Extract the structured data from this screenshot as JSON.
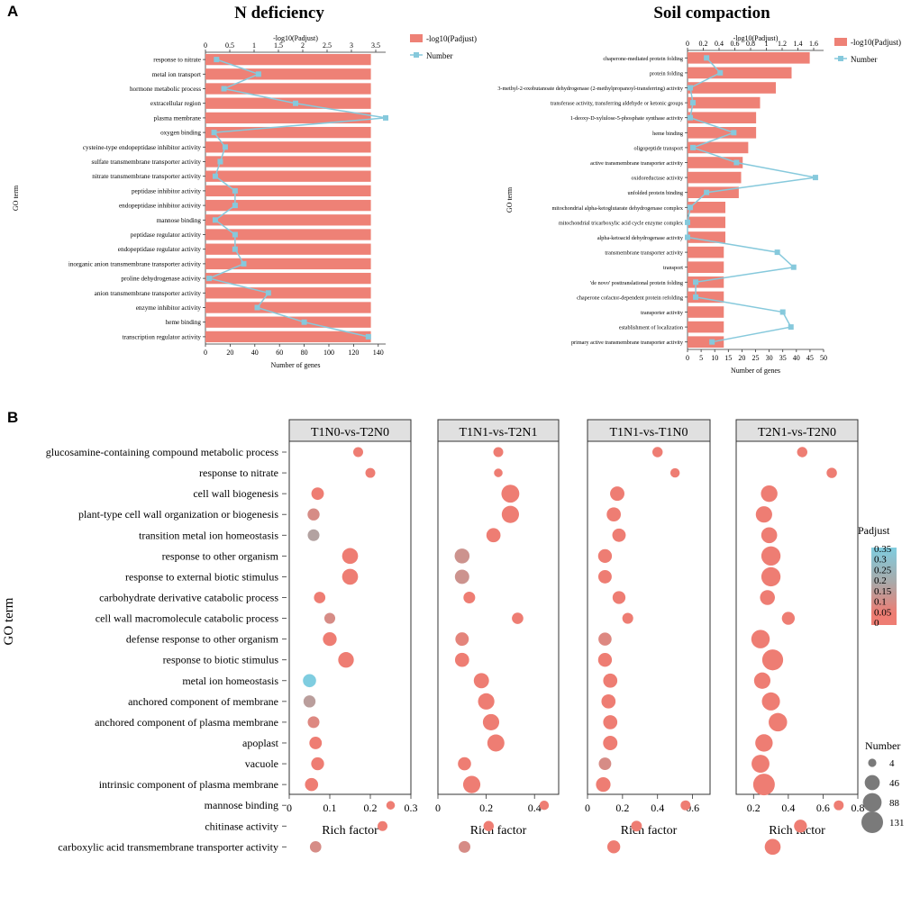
{
  "panel_labels": {
    "a": "A",
    "b": "B"
  },
  "colors": {
    "bar": "#ee8176",
    "line": "#86c9dc",
    "grid": "#d9d9d9",
    "strip_bg": "#e0e0e0",
    "low_padj": "#ee7d73",
    "mid_padj": "#a9a9a9",
    "high_padj": "#7fcde0"
  },
  "chart_data": [
    {
      "id": "n_deficiency",
      "type": "bar",
      "title": "N deficiency",
      "ylabel": "GO term",
      "xlabel": "Number of genes",
      "top_axis_label": "-log10(Padjust)",
      "legend": {
        "bar": "-log10(Padjust)",
        "line": "Number"
      },
      "x_ticks": [
        0,
        20,
        40,
        60,
        80,
        100,
        120,
        140
      ],
      "x_range": [
        0,
        146
      ],
      "top_ticks": [
        "0",
        "0.5",
        "1",
        "1.5",
        "2",
        "2.5",
        "3",
        "3.5"
      ],
      "top_range": [
        0,
        3.5
      ],
      "categories": [
        "response to nitrate",
        "metal ion transport",
        "hormone metabolic process",
        "extracellular region",
        "plasma membrane",
        "oxygen binding",
        "cysteine-type endopeptidase inhibitor activity",
        "sulfate transmembrane transporter activity",
        "nitrate transmembrane transporter activity",
        "peptidase inhibitor activity",
        "endopeptidase inhibitor activity",
        "mannose binding",
        "peptidase regulator activity",
        "endopeptidase regulator activity",
        "inorganic anion transmembrane transporter activity",
        "proline dehydrogenase activity",
        "anion transmembrane transporter activity",
        "enzyme inhibitor activity",
        "heme binding",
        "transcription regulator activity"
      ],
      "series": [
        {
          "name": "-log10(Padjust)",
          "values": [
            3.4,
            3.4,
            3.4,
            3.4,
            3.4,
            3.4,
            3.4,
            3.4,
            3.4,
            3.4,
            3.4,
            3.4,
            3.4,
            3.4,
            3.4,
            3.4,
            3.4,
            3.4,
            3.4,
            3.4
          ]
        },
        {
          "name": "Number",
          "values": [
            9,
            43,
            15,
            73,
            146,
            7,
            16,
            12,
            8,
            24,
            24,
            8,
            24,
            24,
            31,
            3,
            51,
            42,
            80,
            132
          ]
        }
      ]
    },
    {
      "id": "soil_compaction",
      "type": "bar",
      "title": "Soil compaction",
      "ylabel": "GO term",
      "xlabel": "Number of genes",
      "top_axis_label": "-log10(Padjust)",
      "legend": {
        "bar": "-log10(Padjust)",
        "line": "Number"
      },
      "x_ticks": [
        0,
        5,
        10,
        15,
        20,
        25,
        30,
        35,
        40,
        45,
        50
      ],
      "x_range": [
        0,
        50
      ],
      "top_ticks": [
        "0",
        "0.2",
        "0.4",
        "0.6",
        "0.8",
        "1",
        "1.2",
        "1.4",
        "1.6"
      ],
      "top_range": [
        0,
        1.6
      ],
      "categories": [
        "chaperone-mediated protein folding",
        "protein folding",
        "3-methyl-2-oxobutanoate dehydrogenase (2-methylpropanoyl-transferring) activity",
        "transferase activity, transferring aldehyde or ketonic groups",
        "1-deoxy-D-xylulose-5-phosphate synthase activity",
        "heme binding",
        "oligopeptide transport",
        "active transmembrane transporter activity",
        "oxidoreductase activity",
        "unfolded protein binding",
        "mitochondrial alpha-ketoglutarate dehydrogenase complex",
        "mitochondrial tricarboxylic acid cycle enzyme complex",
        "alpha-ketoacid dehydrogenase activity",
        "transmembrane transporter activity",
        "transport",
        "'de novo' posttranslational protein folding",
        "chaperone cofactor-dependent protein refolding",
        "transporter activity",
        "establishment of localization",
        "primary active transmembrane transporter activity"
      ],
      "series": [
        {
          "name": "-log10(Padjust)",
          "values": [
            1.55,
            1.32,
            1.12,
            0.92,
            0.87,
            0.87,
            0.77,
            0.7,
            0.68,
            0.65,
            0.48,
            0.48,
            0.48,
            0.46,
            0.46,
            0.46,
            0.46,
            0.46,
            0.46,
            0.46
          ]
        },
        {
          "name": "Number",
          "values": [
            7,
            12,
            1,
            2,
            1,
            17,
            2,
            18,
            47,
            7,
            1,
            0,
            0,
            33,
            39,
            3,
            3,
            35,
            38,
            9
          ]
        }
      ]
    },
    {
      "id": "facet_bubble",
      "type": "scatter",
      "xlabel": "Rich factor",
      "ylabel": "GO term",
      "categories": [
        "glucosamine-containing compound metabolic process",
        "response to nitrate",
        "cell wall biogenesis",
        "plant-type cell wall organization or biogenesis",
        "transition metal ion homeostasis",
        "response to other organism",
        "response to external biotic stimulus",
        "carbohydrate derivative catabolic process",
        "cell wall macromolecule catabolic process",
        "defense response to other organism",
        "response to biotic stimulus",
        "metal ion homeostasis",
        "anchored component of membrane",
        "anchored component of plasma membrane",
        "apoplast",
        "vacuole",
        "intrinsic component of plasma membrane",
        "mannose binding",
        "chitinase activity",
        "carboxylic acid transmembrane transporter activity"
      ],
      "legend_color": {
        "title": "Padjust",
        "ticks": [
          "0.35",
          "0.3",
          "0.25",
          "0.2",
          "0.15",
          "0.1",
          "0.05",
          "0"
        ]
      },
      "legend_size": {
        "title": "Number",
        "values": [
          4,
          46,
          88,
          131
        ]
      },
      "panels": [
        {
          "name": "T1N0-vs-T2N0",
          "x_ticks": [
            "0",
            "0.1",
            "0.2",
            "0.3"
          ],
          "x_range": [
            0,
            0.3
          ],
          "rich": [
            0.17,
            0.2,
            0.07,
            0.06,
            0.06,
            0.15,
            0.15,
            0.075,
            0.1,
            0.1,
            0.14,
            0.05,
            0.05,
            0.06,
            0.065,
            0.07,
            0.055,
            0.25,
            0.23,
            0.065
          ],
          "count": [
            10,
            10,
            25,
            22,
            20,
            55,
            55,
            18,
            15,
            35,
            52,
            30,
            22,
            20,
            25,
            28,
            30,
            5,
            10,
            18
          ],
          "padj": [
            0.02,
            0.02,
            0.02,
            0.12,
            0.22,
            0.02,
            0.02,
            0.02,
            0.12,
            0.02,
            0.02,
            0.34,
            0.2,
            0.1,
            0.02,
            0.02,
            0.02,
            0.02,
            0.02,
            0.12
          ]
        },
        {
          "name": "T1N1-vs-T2N1",
          "x_ticks": [
            "0",
            "0.2",
            "0.4"
          ],
          "x_range": [
            0,
            0.5
          ],
          "rich": [
            0.25,
            0.25,
            0.3,
            0.3,
            0.23,
            0.1,
            0.1,
            0.13,
            0.33,
            0.1,
            0.1,
            0.18,
            0.2,
            0.22,
            0.24,
            0.11,
            0.14,
            0.44,
            0.21,
            0.11
          ],
          "count": [
            10,
            5,
            78,
            70,
            38,
            45,
            40,
            20,
            18,
            32,
            38,
            48,
            60,
            60,
            68,
            30,
            70,
            8,
            12,
            20
          ],
          "padj": [
            0.02,
            0.02,
            0.02,
            0.02,
            0.02,
            0.15,
            0.15,
            0.02,
            0.02,
            0.08,
            0.04,
            0.02,
            0.02,
            0.02,
            0.02,
            0.05,
            0.02,
            0.02,
            0.02,
            0.12
          ]
        },
        {
          "name": "T1N1-vs-T1N0",
          "x_ticks": [
            "0",
            "0.2",
            "0.4",
            "0.6"
          ],
          "x_range": [
            0,
            0.7
          ],
          "rich": [
            0.4,
            0.5,
            0.17,
            0.15,
            0.18,
            0.1,
            0.1,
            0.18,
            0.23,
            0.1,
            0.1,
            0.13,
            0.12,
            0.13,
            0.13,
            0.1,
            0.09,
            0.56,
            0.28,
            0.15
          ],
          "count": [
            12,
            8,
            40,
            38,
            32,
            35,
            32,
            28,
            15,
            30,
            35,
            38,
            38,
            38,
            40,
            25,
            42,
            10,
            14,
            28
          ],
          "padj": [
            0.02,
            0.02,
            0.02,
            0.02,
            0.02,
            0.02,
            0.02,
            0.02,
            0.02,
            0.1,
            0.02,
            0.02,
            0.02,
            0.02,
            0.02,
            0.12,
            0.02,
            0.02,
            0.02,
            0.02
          ]
        },
        {
          "name": "T2N1-vs-T2N0",
          "x_ticks": [
            "0.2",
            "0.4",
            "0.6",
            "0.8"
          ],
          "x_range": [
            0.1,
            0.8
          ],
          "rich": [
            0.48,
            0.65,
            0.29,
            0.26,
            0.29,
            0.3,
            0.3,
            0.28,
            0.4,
            0.24,
            0.31,
            0.25,
            0.3,
            0.34,
            0.26,
            0.24,
            0.26,
            0.69,
            0.47,
            0.31
          ],
          "count": [
            12,
            12,
            62,
            60,
            55,
            95,
            95,
            45,
            28,
            85,
            120,
            60,
            80,
            85,
            72,
            78,
            131,
            10,
            28,
            55
          ],
          "padj": [
            0.02,
            0.02,
            0.02,
            0.02,
            0.02,
            0.02,
            0.02,
            0.02,
            0.02,
            0.02,
            0.02,
            0.02,
            0.02,
            0.02,
            0.02,
            0.02,
            0.02,
            0.02,
            0.02,
            0.02
          ]
        }
      ]
    }
  ]
}
